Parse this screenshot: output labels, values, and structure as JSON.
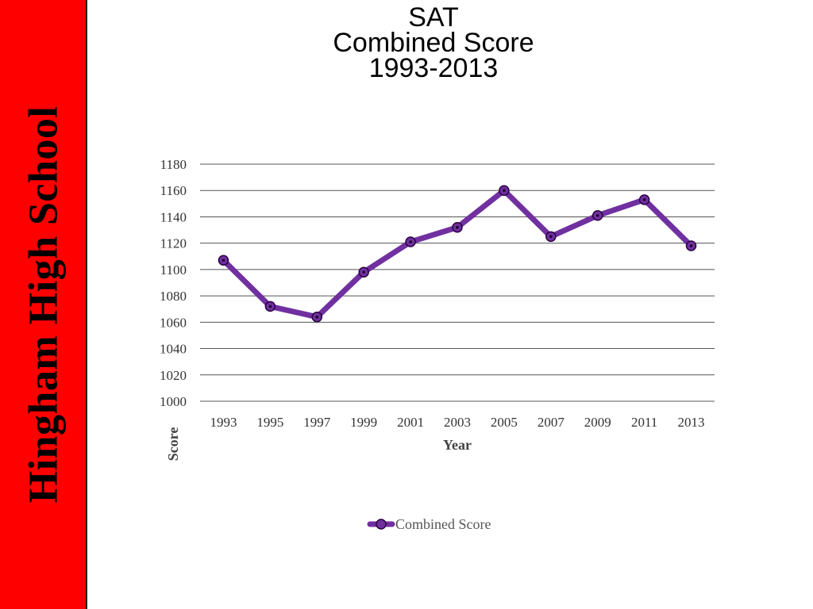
{
  "sidebar": {
    "label": "Hingham High School",
    "color": "#ff0000"
  },
  "title": {
    "line1": "SAT",
    "line2": "Combined Score",
    "line3": "1993-2013"
  },
  "chart_data": {
    "type": "line",
    "categories": [
      "1993",
      "1995",
      "1997",
      "1999",
      "2001",
      "2003",
      "2005",
      "2007",
      "2009",
      "2011",
      "2013"
    ],
    "series": [
      {
        "name": "Combined Score",
        "values": [
          1107,
          1072,
          1064,
          1098,
          1121,
          1132,
          1160,
          1125,
          1141,
          1153,
          1118
        ],
        "color": "#7030a0"
      }
    ],
    "xlabel": "Year",
    "ylabel": "Score",
    "ylim": [
      1000,
      1180
    ],
    "yticks": [
      1000,
      1020,
      1040,
      1060,
      1080,
      1100,
      1120,
      1140,
      1160,
      1180
    ],
    "grid": true,
    "legend": "bottom"
  }
}
